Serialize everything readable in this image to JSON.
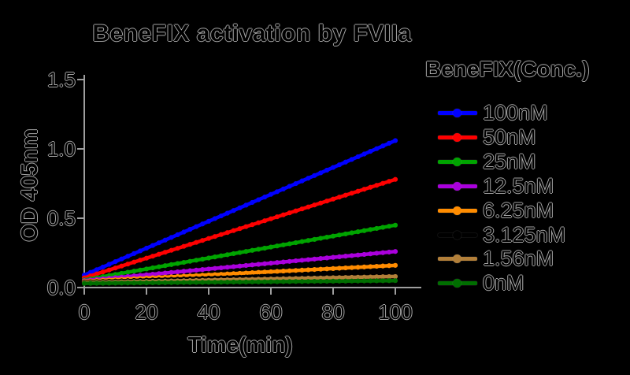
{
  "chart_data": {
    "type": "line",
    "title": "BeneFIX activation by FVIIa",
    "xlabel": "Time(min)",
    "ylabel": "OD 405nm",
    "legend_title": "BeneFIX(Conc.)",
    "legend_position": "right",
    "grid": false,
    "background_color": "#000000",
    "axis_color": "#9e9e9e",
    "text_color": "#000000",
    "xlim": [
      0,
      100
    ],
    "ylim": [
      0,
      1.5
    ],
    "x_ticks": [
      0,
      20,
      40,
      60,
      80,
      100
    ],
    "y_ticks": [
      0,
      0.5,
      1.0,
      1.5
    ],
    "x": [
      0,
      100
    ],
    "series": [
      {
        "name": "100nM",
        "color": "#0000FF",
        "values": [
          0.09,
          1.06
        ]
      },
      {
        "name": "50nM",
        "color": "#FF0000",
        "values": [
          0.07,
          0.78
        ]
      },
      {
        "name": "25nM",
        "color": "#00A400",
        "values": [
          0.055,
          0.45
        ]
      },
      {
        "name": "12.5nM",
        "color": "#AA00DD",
        "values": [
          0.05,
          0.26
        ]
      },
      {
        "name": "6.25nM",
        "color": "#FF8C00",
        "values": [
          0.045,
          0.16
        ]
      },
      {
        "name": "3.125nM",
        "color": "#000000",
        "values": [
          0.04,
          0.11
        ]
      },
      {
        "name": "1.56nM",
        "color": "#B27F39",
        "values": [
          0.035,
          0.08
        ]
      },
      {
        "name": "0nM",
        "color": "#006E00",
        "values": [
          0.03,
          0.05
        ]
      }
    ]
  }
}
